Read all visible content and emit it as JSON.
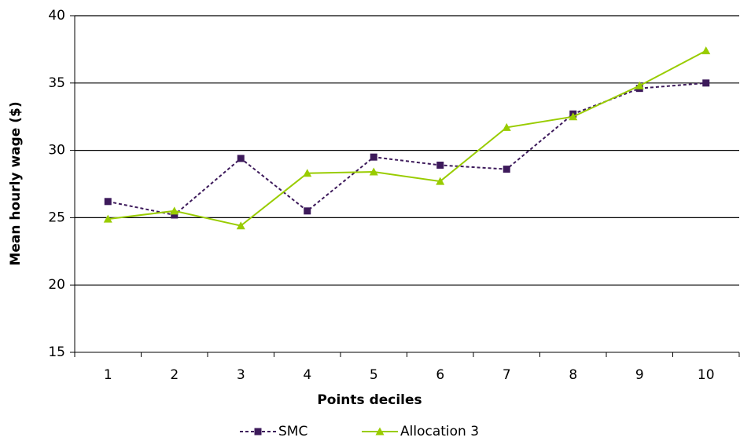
{
  "chart_data": {
    "type": "line",
    "x_label": "Points deciles",
    "y_label": "Mean hourly wage ($)",
    "categories": [
      "1",
      "2",
      "3",
      "4",
      "5",
      "6",
      "7",
      "8",
      "9",
      "10"
    ],
    "series": [
      {
        "name": "SMC",
        "color": "#3d1a5b",
        "dashed": true,
        "marker": "square",
        "values": [
          26.2,
          25.2,
          29.4,
          25.5,
          29.5,
          28.9,
          28.6,
          32.7,
          34.6,
          35.0
        ]
      },
      {
        "name": "Allocation 3",
        "color": "#99cc00",
        "dashed": false,
        "marker": "triangle",
        "values": [
          24.9,
          25.5,
          24.4,
          28.3,
          28.4,
          27.7,
          31.7,
          32.5,
          34.8,
          37.4
        ]
      }
    ],
    "ylim": [
      15,
      40
    ],
    "yticks": [
      15,
      20,
      25,
      30,
      35,
      40
    ],
    "grid": true,
    "legend": "bottom"
  }
}
